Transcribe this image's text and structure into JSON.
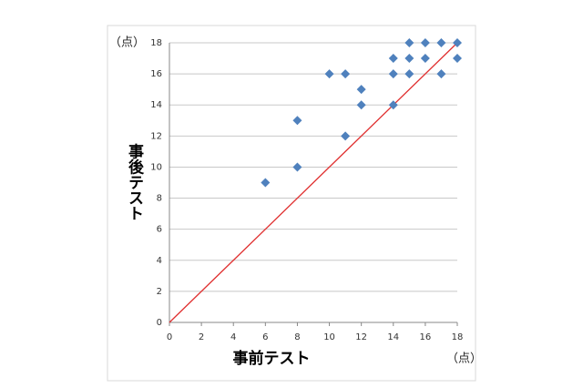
{
  "chart_data": {
    "type": "scatter",
    "x_label": "事前テスト",
    "y_label": "事後テスト",
    "x_unit": "（点）",
    "y_unit": "（点）",
    "x": [
      6,
      8,
      8,
      10,
      11,
      11,
      12,
      12,
      14,
      14,
      14,
      15,
      15,
      15,
      16,
      16,
      17,
      17,
      18,
      18
    ],
    "values": [
      9,
      10,
      13,
      16,
      16,
      12,
      15,
      14,
      14,
      16,
      17,
      16,
      17,
      18,
      18,
      17,
      18,
      16,
      18,
      17
    ],
    "color": "#4f81bd",
    "reference_line": {
      "x": [
        0,
        18
      ],
      "y": [
        0,
        18
      ],
      "color": "#e03030"
    },
    "xlim": [
      0,
      18
    ],
    "ylim": [
      0,
      18
    ],
    "xticks": [
      0,
      2,
      4,
      6,
      8,
      10,
      12,
      14,
      16,
      18
    ],
    "yticks": [
      0,
      2,
      4,
      6,
      8,
      10,
      12,
      14,
      16,
      18
    ],
    "grid": true
  }
}
